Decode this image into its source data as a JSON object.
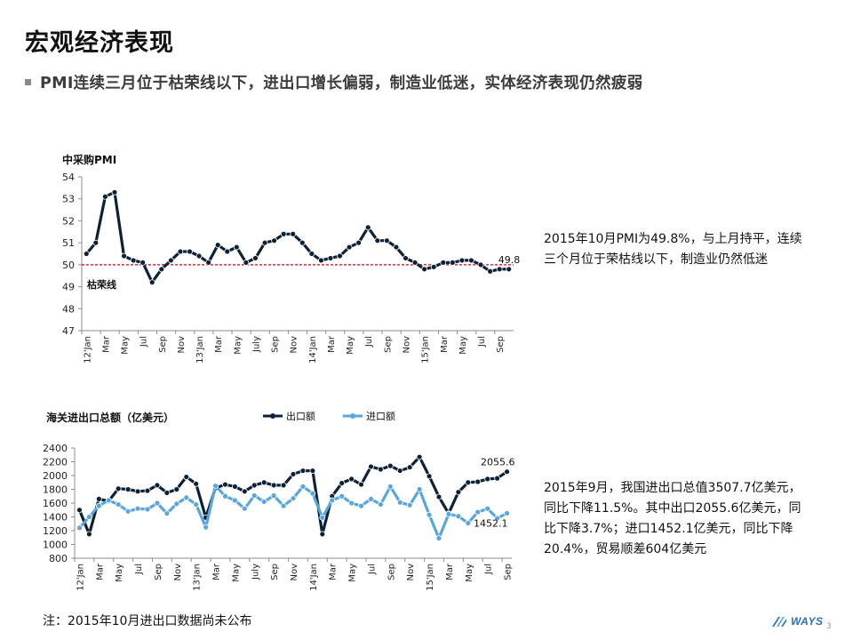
{
  "page": {
    "title": "宏观经济表现",
    "subtitle": "PMI连续三月位于枯荣线以下，进出口增长偏弱，制造业低迷，实体经济表现仍然疲弱",
    "footnote": "注：2015年10月进出口数据尚未公布",
    "logo_text": "WAYS",
    "page_number": "3"
  },
  "comments": {
    "pmi": "2015年10月PMI为49.8%，与上月持平，连续三个月位于荣枯线以下，制造业仍然低迷",
    "trade": "2015年9月，我国进出口总值3507.7亿美元，同比下降11.5%。其中出口2055.6亿美元，同比下降3.7%；进口1452.1亿美元，同比下降20.4%，贸易顺差604亿美元"
  },
  "colors": {
    "export": "#0d2136",
    "import": "#5aa6dc",
    "pmi": "#0d2136",
    "reference_line": "#d0021b",
    "axis": "#8c8c8c"
  },
  "chart_data": [
    {
      "type": "line",
      "title": "中采购PMI",
      "xlabel": "",
      "ylabel": "",
      "ylim": [
        47,
        54
      ],
      "yticks": [
        "47",
        "48",
        "49",
        "50",
        "51",
        "52",
        "53",
        "54"
      ],
      "tick_labels": [
        "12'Jan",
        "Mar",
        "May",
        "Jul",
        "Sep",
        "Nov",
        "13'Jan",
        "Mar",
        "May",
        "July",
        "Sep",
        "Nov",
        "14'Jan",
        "Mar",
        "May",
        "Jul",
        "Sep",
        "Nov",
        "15'Jan",
        "Mar",
        "May",
        "Jul",
        "Sep"
      ],
      "reference_line": {
        "value": 50,
        "label": "枯荣线"
      },
      "last_label": "49.8",
      "grid": false,
      "series": [
        {
          "values": [
            50.5,
            51.0,
            53.1,
            53.3,
            50.4,
            50.2,
            50.1,
            49.2,
            49.8,
            50.2,
            50.6,
            50.6,
            50.4,
            50.1,
            50.9,
            50.6,
            50.8,
            50.1,
            50.3,
            51.0,
            51.1,
            51.4,
            51.4,
            51.0,
            50.5,
            50.2,
            50.3,
            50.4,
            50.8,
            51.0,
            51.7,
            51.1,
            51.1,
            50.8,
            50.3,
            50.1,
            49.8,
            49.9,
            50.1,
            50.1,
            50.2,
            50.2,
            50.0,
            49.7,
            49.8,
            49.8
          ]
        }
      ]
    },
    {
      "type": "line",
      "title": "海关进出口总额（亿美元）",
      "xlabel": "",
      "ylabel": "",
      "ylim": [
        800,
        2400
      ],
      "yticks": [
        "800",
        "1000",
        "1200",
        "1400",
        "1600",
        "1800",
        "2000",
        "2200",
        "2400"
      ],
      "tick_labels": [
        "12'Jan",
        "Mar",
        "May",
        "Jul",
        "Sep",
        "Nov",
        "13'Jan",
        "Mar",
        "May",
        "July",
        "Sep",
        "Nov",
        "14'Jan",
        "Mar",
        "May",
        "Jul",
        "Sep",
        "Nov",
        "15'Jan",
        "Mar",
        "May",
        "Jul",
        "Sep"
      ],
      "legend": "top",
      "grid": false,
      "series": [
        {
          "name": "出口额",
          "values": [
            1500,
            1150,
            1660,
            1630,
            1810,
            1800,
            1770,
            1780,
            1860,
            1750,
            1800,
            1980,
            1880,
            1390,
            1820,
            1870,
            1840,
            1770,
            1860,
            1900,
            1860,
            1860,
            2020,
            2070,
            2070,
            1150,
            1700,
            1890,
            1950,
            1870,
            2130,
            2090,
            2140,
            2070,
            2120,
            2270,
            1990,
            1690,
            1450,
            1760,
            1900,
            1910,
            1950,
            1960,
            2055.6
          ],
          "last_label": "2055.6"
        },
        {
          "name": "进口额",
          "values": [
            1240,
            1400,
            1560,
            1640,
            1580,
            1480,
            1520,
            1510,
            1600,
            1450,
            1590,
            1680,
            1580,
            1250,
            1850,
            1700,
            1640,
            1520,
            1710,
            1620,
            1710,
            1560,
            1670,
            1840,
            1740,
            1390,
            1640,
            1700,
            1600,
            1560,
            1660,
            1580,
            1840,
            1610,
            1570,
            1800,
            1430,
            1090,
            1440,
            1410,
            1310,
            1470,
            1520,
            1380,
            1452.1
          ],
          "last_label": "1452.1"
        }
      ]
    }
  ]
}
